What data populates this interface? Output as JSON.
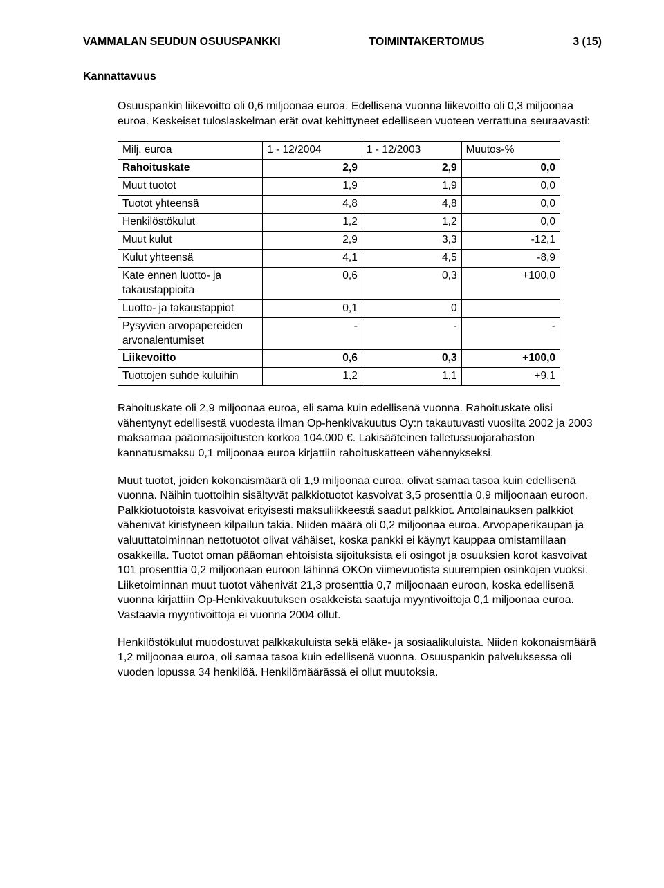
{
  "header": {
    "left": "VAMMALAN SEUDUN OSUUSPANKKI",
    "center": "TOIMINTAKERTOMUS",
    "right": "3 (15)"
  },
  "section_title": "Kannattavuus",
  "intro": "Osuuspankin liikevoitto oli 0,6 miljoonaa euroa. Edellisenä vuonna liikevoitto oli 0,3 miljoonaa euroa. Keskeiset tuloslaskelman erät ovat kehittyneet edelliseen vuoteen verrattuna seuraavasti:",
  "table": {
    "columns": [
      "Milj. euroa",
      "1 - 12/2004",
      "1 - 12/2003",
      "Muutos-%"
    ],
    "col_align": [
      "left",
      "right",
      "right",
      "right"
    ],
    "rows": [
      {
        "label": "Rahoituskate",
        "c1": "2,9",
        "c2": "2,9",
        "c3": "0,0",
        "bold": true
      },
      {
        "label": "Muut tuotot",
        "c1": "1,9",
        "c2": "1,9",
        "c3": "0,0",
        "bold": false
      },
      {
        "label": "Tuotot yhteensä",
        "c1": "4,8",
        "c2": "4,8",
        "c3": "0,0",
        "bold": false
      },
      {
        "label": "Henkilöstökulut",
        "c1": "1,2",
        "c2": "1,2",
        "c3": "0,0",
        "bold": false
      },
      {
        "label": "Muut kulut",
        "c1": "2,9",
        "c2": "3,3",
        "c3": "-12,1",
        "bold": false
      },
      {
        "label": "Kulut yhteensä",
        "c1": "4,1",
        "c2": "4,5",
        "c3": "-8,9",
        "bold": false
      },
      {
        "label": "Kate ennen luotto- ja takaustappioita",
        "c1": "0,6",
        "c2": "0,3",
        "c3": "+100,0",
        "bold": false
      },
      {
        "label": "Luotto- ja takaustappiot",
        "c1": "0,1",
        "c2": "0",
        "c3": "",
        "bold": false
      },
      {
        "label": "Pysyvien arvopapereiden arvonalentumiset",
        "c1": "-",
        "c2": "-",
        "c3": "-",
        "bold": false
      },
      {
        "label": "Liikevoitto",
        "c1": "0,6",
        "c2": "0,3",
        "c3": "+100,0",
        "bold": true
      },
      {
        "label": "Tuottojen suhde kuluihin",
        "c1": "1,2",
        "c2": "1,1",
        "c3": "+9,1",
        "bold": false
      }
    ],
    "border_color": "#000000",
    "background_color": "#ffffff"
  },
  "paragraphs": [
    "Rahoituskate oli 2,9 miljoonaa euroa, eli sama kuin edellisenä vuonna. Rahoituskate olisi vähentynyt edellisestä vuodesta ilman Op-henkivakuutus Oy:n takautuvasti vuosilta 2002 ja 2003 maksamaa pääomasijoitusten korkoa 104.000 €. Lakisääteinen talletussuojarahaston kannatusmaksu 0,1 miljoonaa euroa kirjattiin rahoituskatteen vähennykseksi.",
    "Muut tuotot, joiden kokonaismäärä oli 1,9 miljoonaa euroa, olivat samaa tasoa kuin edellisenä vuonna. Näihin tuottoihin sisältyvät palkkiotuotot kasvoivat 3,5 prosenttia 0,9 miljoonaan euroon. Palkkiotuotoista kasvoivat erityisesti maksuliikkeestä saadut palkkiot. Antolainauksen palkkiot vähenivät kiristyneen kilpailun takia. Niiden määrä oli 0,2 miljoonaa euroa. Arvopaperikaupan ja valuuttatoiminnan nettotuotot olivat vähäiset, koska pankki ei käynyt kauppaa omistamillaan osakkeilla. Tuotot oman pääoman ehtoisista sijoituksista eli osingot ja osuuksien korot kasvoivat 101 prosenttia 0,2 miljoonaan euroon lähinnä OKOn viimevuotista suurempien osinkojen vuoksi. Liiketoiminnan muut tuotot vähenivät 21,3 prosenttia 0,7 miljoonaan euroon, koska edellisenä vuonna kirjattiin Op-Henkivakuutuksen osakkeista saatuja myyntivoittoja 0,1 miljoonaa euroa. Vastaavia myyntivoittoja ei vuonna 2004 ollut.",
    "Henkilöstökulut muodostuvat palkkakuluista sekä eläke- ja sosiaalikuluista. Niiden kokonaismäärä 1,2 miljoonaa euroa, oli samaa tasoa kuin edellisenä vuonna. Osuuspankin palveluksessa oli vuoden lopussa 34 henkilöä. Henkilömäärässä ei ollut muutoksia."
  ]
}
